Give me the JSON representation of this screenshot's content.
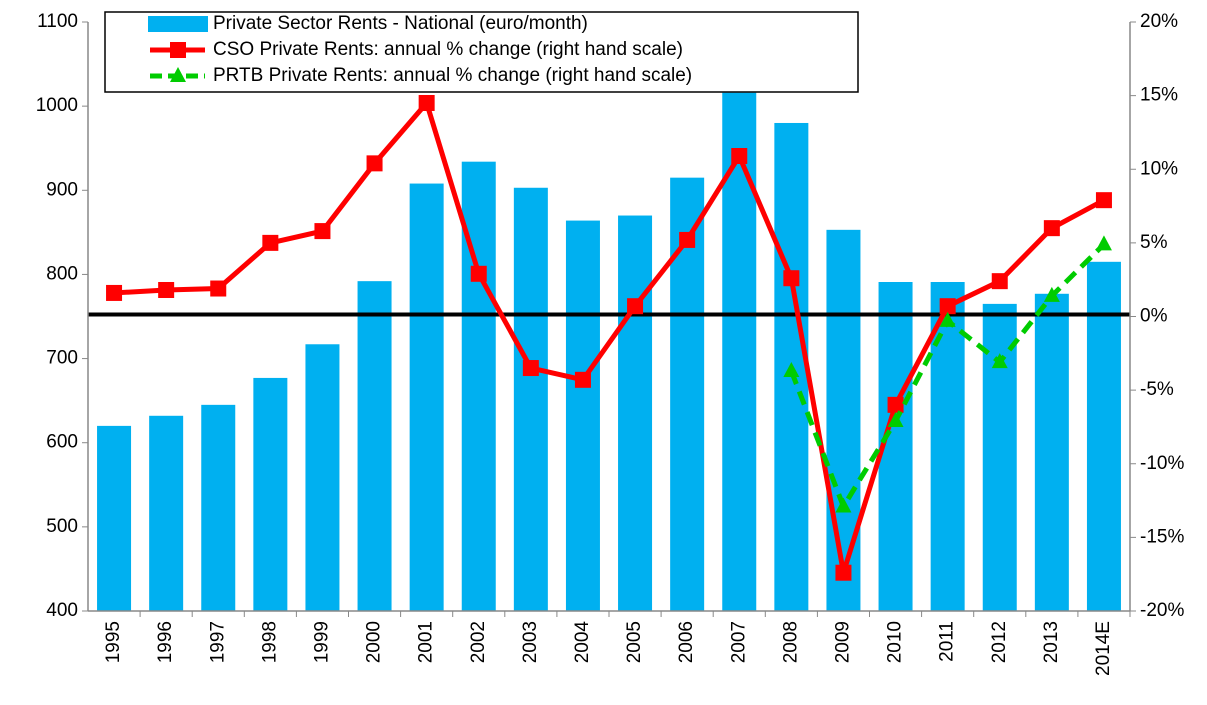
{
  "chart_data": {
    "type": "bar_line",
    "categories": [
      "1995",
      "1996",
      "1997",
      "1998",
      "1999",
      "2000",
      "2001",
      "2002",
      "2003",
      "2004",
      "2005",
      "2006",
      "2007",
      "2008",
      "2009",
      "2010",
      "2011",
      "2012",
      "2013",
      "2014E"
    ],
    "series": [
      {
        "name": "Private Sector Rents - National (euro/month)",
        "color": "#00b0f0",
        "kind": "bar",
        "axis": "y",
        "values": [
          620,
          632,
          645,
          677,
          717,
          792,
          908,
          934,
          903,
          864,
          870,
          915,
          1016,
          980,
          853,
          791,
          791,
          765,
          777,
          815
        ]
      },
      {
        "name": "CSO Private Rents: annual % change  (right hand scale)",
        "color": "#ff0000",
        "kind": "line",
        "axis": "y2",
        "marker": "square",
        "dash": false,
        "values": [
          1.6,
          1.8,
          1.9,
          5.0,
          5.8,
          10.4,
          14.5,
          2.9,
          -3.5,
          -4.3,
          0.7,
          5.2,
          10.9,
          2.6,
          -17.4,
          -6.0,
          0.7,
          2.4,
          6.0,
          7.9
        ]
      },
      {
        "name": "PRTB Private Rents: annual % change  (right hand scale)",
        "color": "#00cc00",
        "kind": "line",
        "axis": "y2",
        "marker": "triangle",
        "dash": true,
        "values": [
          null,
          null,
          null,
          null,
          null,
          null,
          null,
          null,
          null,
          null,
          null,
          null,
          null,
          -3.7,
          -12.9,
          -7.1,
          -0.3,
          -3.1,
          1.4,
          4.9
        ]
      }
    ],
    "ylim": [
      400,
      1100
    ],
    "yticks": [
      400,
      500,
      600,
      700,
      800,
      900,
      1000,
      1100
    ],
    "y2lim": [
      -20,
      20
    ],
    "y2ticks": [
      {
        "value": -20,
        "label": "-20%"
      },
      {
        "value": -15,
        "label": "-15%"
      },
      {
        "value": -10,
        "label": "-10%"
      },
      {
        "value": -5,
        "label": "-5%"
      },
      {
        "value": 0,
        "label": "0%"
      },
      {
        "value": 5,
        "label": "5%"
      },
      {
        "value": 10,
        "label": "10%"
      },
      {
        "value": 15,
        "label": "15%"
      },
      {
        "value": 20,
        "label": "20%"
      }
    ],
    "y2_reference_line": 0,
    "grid": false,
    "legend": "top-left"
  }
}
